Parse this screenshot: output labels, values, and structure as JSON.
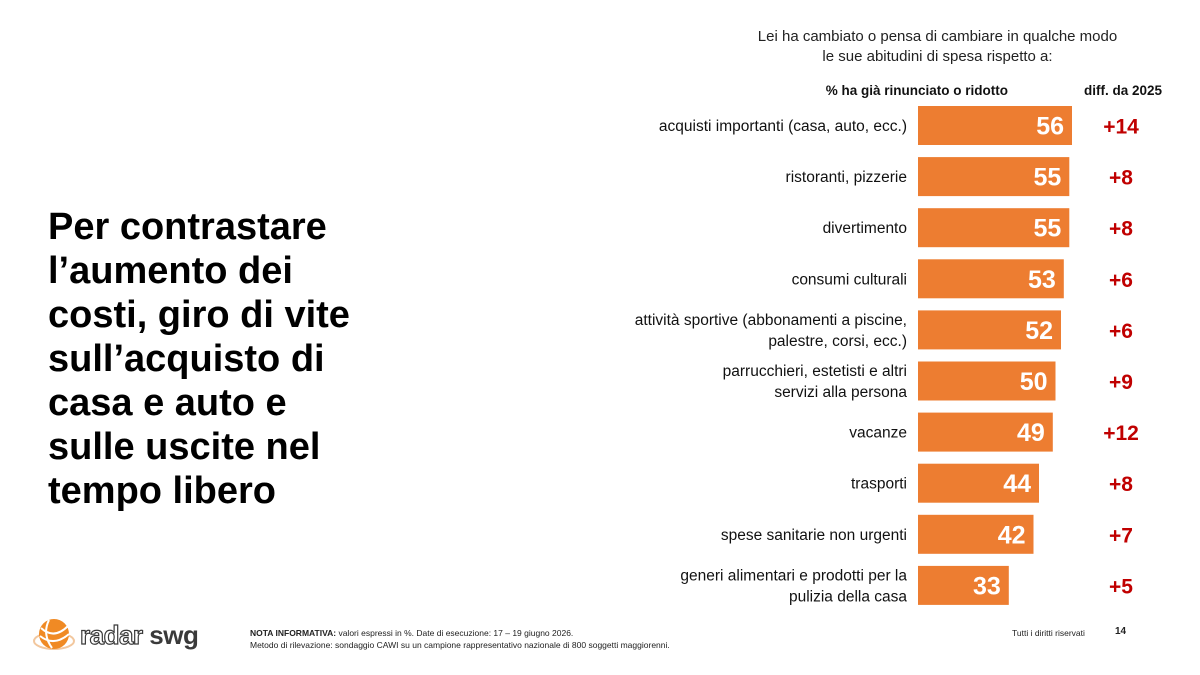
{
  "headline": {
    "lines": [
      "Per contrastare",
      "l’aumento dei",
      "costi, giro di vite",
      "sull’acquisto di",
      "casa e auto e",
      "sulle uscite nel",
      "tempo libero"
    ]
  },
  "question": {
    "lines": [
      "Lei ha cambiato o pensa di cambiare in qualche modo",
      "le sue abitudini di spesa rispetto a:"
    ]
  },
  "columns": {
    "value_header": "% ha già rinunciato o ridotto",
    "diff_header": "diff. da 2025"
  },
  "chart_data": {
    "type": "bar",
    "orientation": "horizontal",
    "categories": [
      "acquisti importanti (casa, auto, ecc.)",
      "ristoranti, pizzerie",
      "divertimento",
      "consumi culturali",
      "attività sportive (abbonamenti a piscine, palestre, corsi, ecc.)",
      "parrucchieri, estetisti e altri servizi alla persona",
      "vacanze",
      "trasporti",
      "spese sanitarie non urgenti",
      "generi alimentari e prodotti per la pulizia della casa"
    ],
    "category_lines": [
      [
        "acquisti importanti (casa, auto, ecc.)"
      ],
      [
        "ristoranti, pizzerie"
      ],
      [
        "divertimento"
      ],
      [
        "consumi culturali"
      ],
      [
        "attività sportive (abbonamenti a piscine,",
        "palestre, corsi, ecc.)"
      ],
      [
        "parrucchieri, estetisti e altri",
        "servizi alla persona"
      ],
      [
        "vacanze"
      ],
      [
        "trasporti"
      ],
      [
        "spese sanitarie non urgenti"
      ],
      [
        "generi alimentari e prodotti per la",
        "pulizia della casa"
      ]
    ],
    "values": [
      56,
      55,
      55,
      53,
      52,
      50,
      49,
      44,
      42,
      33
    ],
    "diffs": [
      "+14",
      "+8",
      "+8",
      "+6",
      "+6",
      "+9",
      "+12",
      "+8",
      "+7",
      "+5"
    ],
    "bar_color": "#ED7D31",
    "value_label_color": "#ffffff",
    "diff_color": "#C00000"
  },
  "footer": {
    "logo_word_1": "radar",
    "logo_word_2": "swg",
    "note_label": "NOTA INFORMATIVA:",
    "note_line_1": " valori espressi in %. Date di esecuzione: 17 – 19 giugno 2026.",
    "note_line_2": "Metodo di rilevazione: sondaggio CAWI su un campione rappresentativo nazionale di 800 soggetti maggiorenni.",
    "rights": "Tutti i diritti riservati",
    "page_number": "14"
  }
}
